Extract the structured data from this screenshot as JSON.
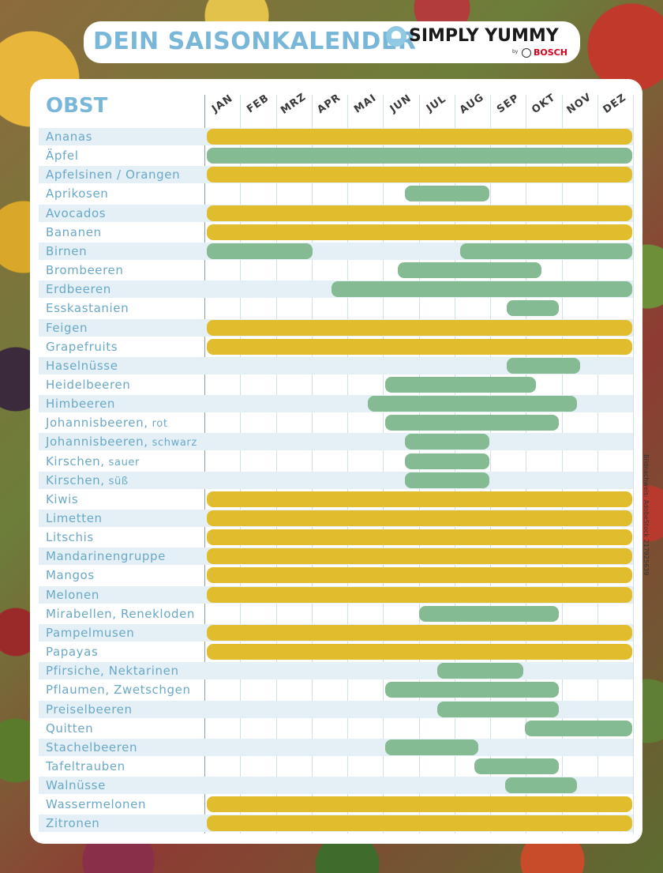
{
  "header": {
    "title": "DEIN SAISONKALENDER",
    "brand": "SIMPLY YUMMY",
    "by": "by",
    "bosch": "BOSCH"
  },
  "section_title": "OBST",
  "months": [
    "JAN",
    "FEB",
    "MRZ",
    "APR",
    "MAI",
    "JUN",
    "JUL",
    "AUG",
    "SEP",
    "OKT",
    "NOV",
    "DEZ"
  ],
  "colors": {
    "green": "#84bb92",
    "yellow": "#e1bd2e",
    "accent": "#79b7d8"
  },
  "fruits": [
    {
      "name": "Ananas",
      "note": "",
      "color": "yellow",
      "bars": [
        [
          0,
          12
        ]
      ]
    },
    {
      "name": "Äpfel",
      "note": "",
      "color": "green",
      "bars": [
        [
          0,
          12
        ]
      ]
    },
    {
      "name": "Apfelsinen / Orangen",
      "note": "",
      "color": "yellow",
      "bars": [
        [
          0,
          12
        ]
      ]
    },
    {
      "name": "Aprikosen",
      "note": "",
      "color": "green",
      "bars": [
        [
          5.55,
          8.0
        ]
      ]
    },
    {
      "name": "Avocados",
      "note": "",
      "color": "yellow",
      "bars": [
        [
          0,
          12
        ]
      ]
    },
    {
      "name": "Bananen",
      "note": "",
      "color": "yellow",
      "bars": [
        [
          0,
          12
        ]
      ]
    },
    {
      "name": "Birnen",
      "note": "",
      "color": "green",
      "bars": [
        [
          0,
          3.05
        ],
        [
          7.1,
          12
        ]
      ]
    },
    {
      "name": "Brombeeren",
      "note": "",
      "color": "green",
      "bars": [
        [
          5.35,
          9.45
        ]
      ]
    },
    {
      "name": "Erdbeeren",
      "note": "",
      "color": "green",
      "bars": [
        [
          3.5,
          12
        ]
      ]
    },
    {
      "name": "Esskastanien",
      "note": "",
      "color": "green",
      "bars": [
        [
          8.4,
          9.95
        ]
      ]
    },
    {
      "name": "Feigen",
      "note": "",
      "color": "yellow",
      "bars": [
        [
          0,
          12
        ]
      ]
    },
    {
      "name": "Grapefruits",
      "note": "",
      "color": "yellow",
      "bars": [
        [
          0,
          12
        ]
      ]
    },
    {
      "name": "Haselnüsse",
      "note": "",
      "color": "green",
      "bars": [
        [
          8.4,
          10.55
        ]
      ]
    },
    {
      "name": "Heidelbeeren",
      "note": "",
      "color": "green",
      "bars": [
        [
          5.0,
          9.3
        ]
      ]
    },
    {
      "name": "Himbeeren",
      "note": "",
      "color": "green",
      "bars": [
        [
          4.5,
          10.45
        ]
      ]
    },
    {
      "name": "Johannisbeeren,",
      "note": "rot",
      "color": "green",
      "bars": [
        [
          5.0,
          9.95
        ]
      ]
    },
    {
      "name": "Johannisbeeren,",
      "note": "schwarz",
      "color": "green",
      "bars": [
        [
          5.55,
          8.0
        ]
      ]
    },
    {
      "name": "Kirschen,",
      "note": "sauer",
      "color": "green",
      "bars": [
        [
          5.55,
          8.0
        ]
      ]
    },
    {
      "name": "Kirschen,",
      "note": "süß",
      "color": "green",
      "bars": [
        [
          5.55,
          8.0
        ]
      ]
    },
    {
      "name": "Kiwis",
      "note": "",
      "color": "yellow",
      "bars": [
        [
          0,
          12
        ]
      ]
    },
    {
      "name": "Limetten",
      "note": "",
      "color": "yellow",
      "bars": [
        [
          0,
          12
        ]
      ]
    },
    {
      "name": "Litschis",
      "note": "",
      "color": "yellow",
      "bars": [
        [
          0,
          12
        ]
      ]
    },
    {
      "name": "Mandarinengruppe",
      "note": "",
      "color": "yellow",
      "bars": [
        [
          0,
          12
        ]
      ]
    },
    {
      "name": "Mangos",
      "note": "",
      "color": "yellow",
      "bars": [
        [
          0,
          12
        ]
      ]
    },
    {
      "name": "Melonen",
      "note": "",
      "color": "yellow",
      "bars": [
        [
          0,
          12
        ]
      ]
    },
    {
      "name": "Mirabellen, Renekloden",
      "note": "",
      "color": "green",
      "bars": [
        [
          5.95,
          9.95
        ]
      ]
    },
    {
      "name": "Pampelmusen",
      "note": "",
      "color": "yellow",
      "bars": [
        [
          0,
          12
        ]
      ]
    },
    {
      "name": "Papayas",
      "note": "",
      "color": "yellow",
      "bars": [
        [
          0,
          12
        ]
      ]
    },
    {
      "name": "Pfirsiche, Nektarinen",
      "note": "",
      "color": "green",
      "bars": [
        [
          6.45,
          8.95
        ]
      ]
    },
    {
      "name": "Pflaumen, Zwetschgen",
      "note": "",
      "color": "green",
      "bars": [
        [
          5.0,
          9.95
        ]
      ]
    },
    {
      "name": "Preiselbeeren",
      "note": "",
      "color": "green",
      "bars": [
        [
          6.45,
          9.95
        ]
      ]
    },
    {
      "name": "Quitten",
      "note": "",
      "color": "green",
      "bars": [
        [
          8.9,
          12
        ]
      ]
    },
    {
      "name": "Stachelbeeren",
      "note": "",
      "color": "green",
      "bars": [
        [
          5.0,
          7.7
        ]
      ]
    },
    {
      "name": "Tafeltrauben",
      "note": "",
      "color": "green",
      "bars": [
        [
          7.5,
          9.95
        ]
      ]
    },
    {
      "name": "Walnüsse",
      "note": "",
      "color": "green",
      "bars": [
        [
          8.35,
          10.45
        ]
      ]
    },
    {
      "name": "Wassermelonen",
      "note": "",
      "color": "yellow",
      "bars": [
        [
          0,
          12
        ]
      ]
    },
    {
      "name": "Zitronen",
      "note": "",
      "color": "yellow",
      "bars": [
        [
          0,
          12
        ]
      ]
    }
  ],
  "credit": "Bildnachweis: AdobeStock 217925639"
}
